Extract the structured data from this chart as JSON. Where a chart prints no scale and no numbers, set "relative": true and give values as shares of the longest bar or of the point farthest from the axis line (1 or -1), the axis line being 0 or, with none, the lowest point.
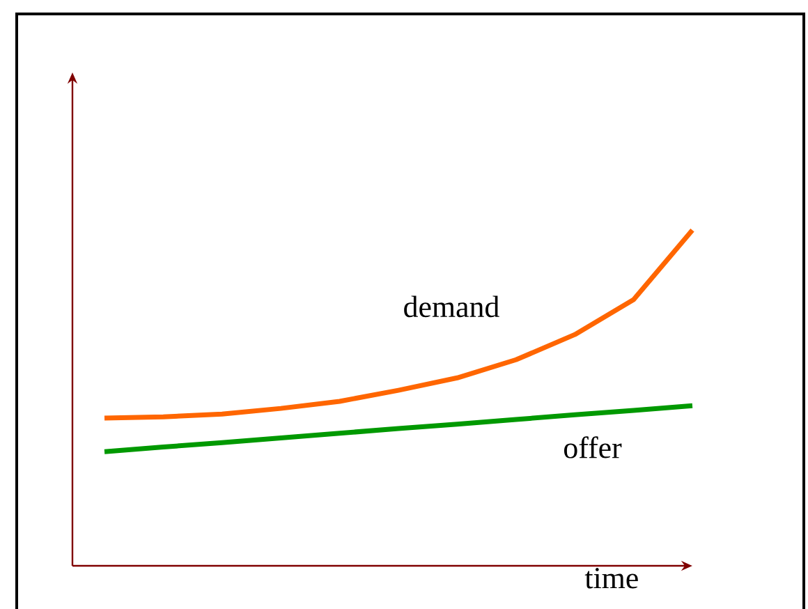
{
  "chart_data": {
    "type": "line",
    "relative": true,
    "xlabel": "time",
    "categories": [
      null,
      null,
      null,
      null,
      null,
      null,
      null,
      null,
      null,
      null,
      null
    ],
    "series": [
      {
        "name": "demand",
        "color": "#ff6600",
        "values": [
          0.44,
          0.444,
          0.452,
          0.469,
          0.49,
          0.523,
          0.56,
          0.614,
          0.689,
          0.793,
          1
        ]
      },
      {
        "name": "offer",
        "color": "#009900",
        "values": [
          0.34,
          0.354,
          0.367,
          0.381,
          0.395,
          0.409,
          0.422,
          0.436,
          0.45,
          0.463,
          0.477
        ]
      }
    ]
  }
}
